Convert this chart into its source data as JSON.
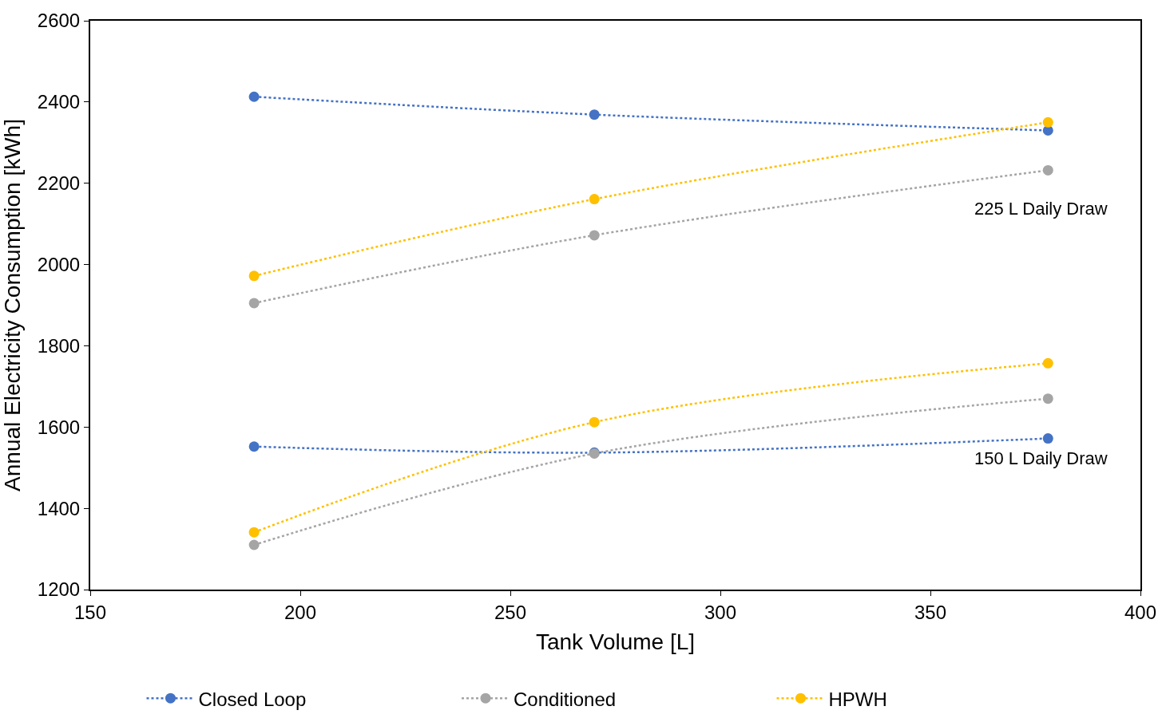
{
  "chart_data": {
    "type": "line",
    "xlabel": "Tank Volume [L]",
    "ylabel": "Annual Electricity Consumption [kWh]",
    "x": [
      189,
      270,
      378
    ],
    "series": [
      {
        "name": "Closed Loop",
        "color": "#4472c4",
        "values": [
          2413,
          2369,
          2330
        ]
      },
      {
        "name": "Conditioned",
        "color": "#a5a5a5",
        "values": [
          1905,
          2072,
          2232
        ]
      },
      {
        "name": "HPWH",
        "color": "#ffc000",
        "values": [
          1972,
          2161,
          2350
        ]
      },
      {
        "color": "#4472c4",
        "values": [
          1552,
          1537,
          1572
        ]
      },
      {
        "color": "#a5a5a5",
        "values": [
          1310,
          1535,
          1670
        ]
      },
      {
        "color": "#ffc000",
        "values": [
          1341,
          1612,
          1757
        ]
      }
    ],
    "xlim": [
      150,
      400
    ],
    "xticks": [
      150,
      200,
      250,
      300,
      350,
      400
    ],
    "ylim": [
      1200,
      2600
    ],
    "yticks": [
      1200,
      1400,
      1600,
      1800,
      2000,
      2200,
      2400,
      2600
    ],
    "annotations": [
      "225 L Daily Draw",
      "150 L Daily Draw"
    ],
    "legend": "bottom",
    "marker": "circle",
    "line_style": "dotted"
  }
}
